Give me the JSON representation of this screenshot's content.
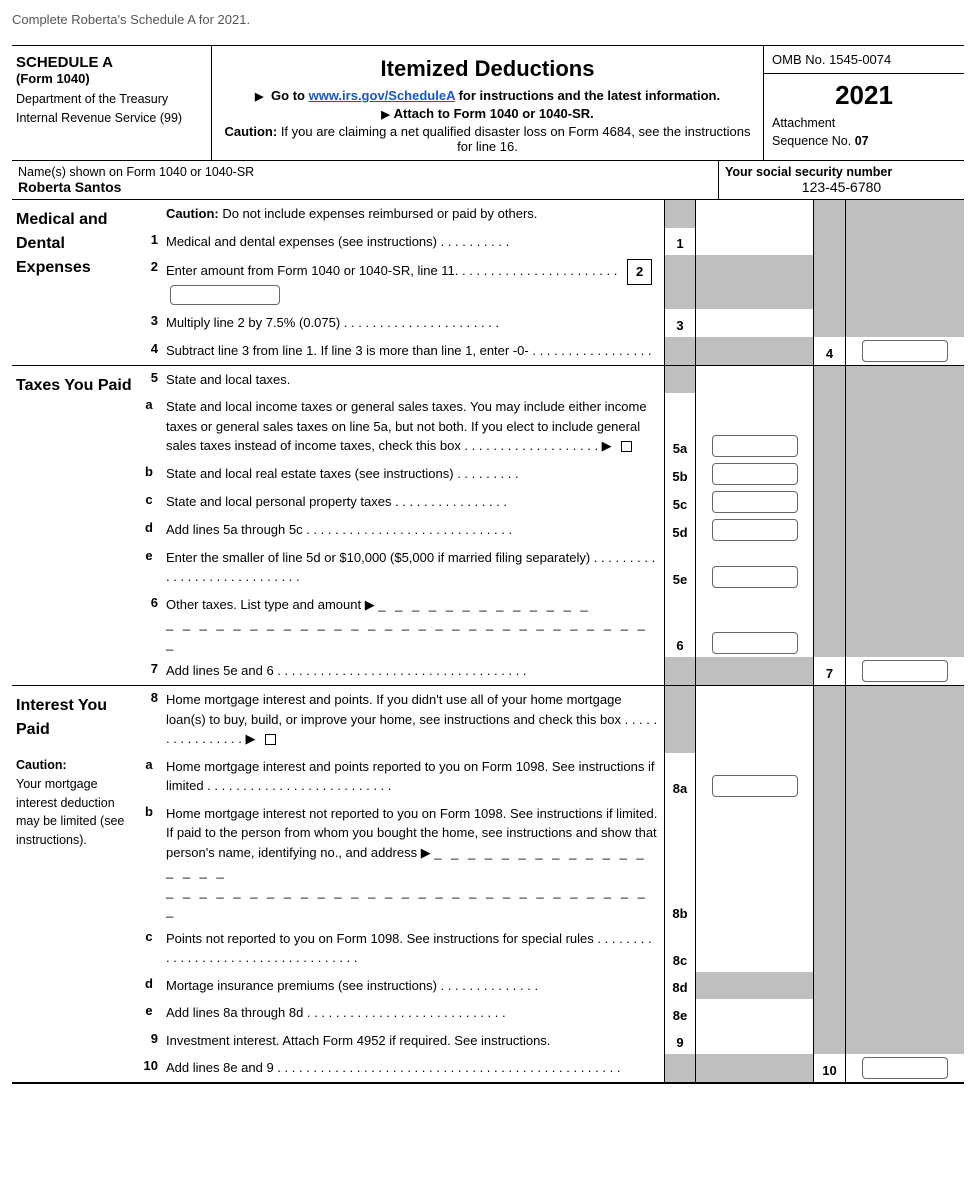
{
  "instruction": "Complete Roberta's Schedule A for 2021.",
  "header": {
    "schedule": "SCHEDULE A",
    "form": "(Form 1040)",
    "dept1": "Department of the Treasury",
    "dept2": "Internal Revenue Service (99)",
    "title": "Itemized Deductions",
    "goto_pre": "Go to ",
    "goto_link": "www.irs.gov/ScheduleA",
    "goto_post": " for instructions and the latest information.",
    "attach": "Attach to Form 1040 or 1040-SR.",
    "caution_label": "Caution:",
    "caution_text": " If you are claiming a net qualified disaster loss on Form 4684, see the instructions for line 16.",
    "omb": "OMB No. 1545-0074",
    "year": "2021",
    "attachment": "Attachment",
    "seqno": "Sequence No. ",
    "seqval": "07"
  },
  "name": {
    "label": "Name(s) shown on Form 1040 or 1040-SR",
    "value": "Roberta Santos",
    "ssn_label": "Your social security number",
    "ssn_value": "123-45-6780"
  },
  "sections": {
    "medical": {
      "title": "Medical and Dental Expenses",
      "caution": "Caution:",
      "caution_text": " Do not include expenses reimbursed or paid by others.",
      "l1": "Medical and dental expenses (see instructions) . . . . . . . . . .",
      "l2": "Enter amount from Form 1040 or 1040-SR, line 11. . . . . . . . . . . . . . . . . . . . . . .",
      "l2box": "2",
      "l3": "Multiply line 2 by 7.5% (0.075) . . . . . . . . . . . . . . . . . . . . . .",
      "l4": "Subtract line 3 from line 1. If line 3 is more than line 1, enter -0- . . . . . . . . . . . . . . . . ."
    },
    "taxes": {
      "title": "Taxes You Paid",
      "l5": "State and local taxes.",
      "la": "State and local income taxes or general sales taxes. You may include either income taxes or general sales taxes on line 5a, but not both. If you elect to include general sales taxes instead of income taxes, check this box . . . . . . . . . . . . . . . . . . . ▶",
      "lb": "State and local real estate taxes (see instructions) . . . . . . . . .",
      "lc": "State and local personal property taxes . . . . . . . . . . . . . . . .",
      "ld": "Add lines 5a through 5c . . . . . . . . . . . . . . . . . . . . . . . . . . . . .",
      "le": "Enter the smaller of line 5d or $10,000 ($5,000 if married filing separately) . . . . . . . . . . . . . . . . . . . . . . . . . . . .",
      "l6": "Other taxes. List type and amount ▶",
      "l7": "Add lines 5e and 6 . . . . . . . . . . . . . . . . . . . . . . . . . . . . . . . . . . ."
    },
    "interest": {
      "title": "Interest You Paid",
      "caution_title": "Caution:",
      "caution_text": "Your mortgage interest deduction may be limited (see instructions).",
      "l8": "Home mortgage interest and points. If you didn't use all of your home mortgage loan(s) to buy, build, or improve your home, see instructions and check this box . . . . . . . . . . . . . . . . ▶",
      "la": "Home mortgage interest and points reported to you on Form 1098. See instructions if limited . . . . . . . . . . . . . . . . . . . . . . . . . .",
      "lb": "Home mortgage interest not reported to you on Form 1098. See instructions if limited. If paid to the person from whom you bought the home, see instructions and show that person's name, identifying no., and address ▶",
      "lc": "Points not reported to you on Form 1098. See instructions for special rules . . . . . . . . . . . . . . . . . . . . . . . . . . . . . . . . . . .",
      "ld": "Mortage insurance premiums (see instructions) . . . . . . . . . . . . . .",
      "le": "Add lines 8a through 8d . . . . . . . . . . . . . . . . . . . . . . . . . . . .",
      "l9": "Investment interest. Attach Form 4952 if required. See instructions.",
      "l10": "Add lines 8e and 9 . . . . . . . . . . . . . . . . . . . . . . . . . . . . . . . . . . . . . . . . . . . . . . . ."
    }
  },
  "labels": {
    "n1": "1",
    "n2": "2",
    "n3": "3",
    "n4": "4",
    "n5": "5",
    "n6": "6",
    "n7": "7",
    "n8": "8",
    "n9": "9",
    "n10": "10",
    "a": "a",
    "b": "b",
    "c": "c",
    "d": "d",
    "e": "e",
    "c5a": "5a",
    "c5b": "5b",
    "c5c": "5c",
    "c5d": "5d",
    "c5e": "5e",
    "c8a": "8a",
    "c8b": "8b",
    "c8c": "8c",
    "c8d": "8d",
    "c8e": "8e"
  },
  "dashes": {
    "short": "_ _ _ _ _ _ _ _ _ _ _ _ _",
    "med": "_ _ _ _ _ _ _ _ _ _ _ _ _ _ _ _ _",
    "long": "_ _ _ _ _ _ _ _ _ _ _ _ _ _ _ _ _ _ _ _ _ _ _ _ _ _ _ _ _ _"
  }
}
